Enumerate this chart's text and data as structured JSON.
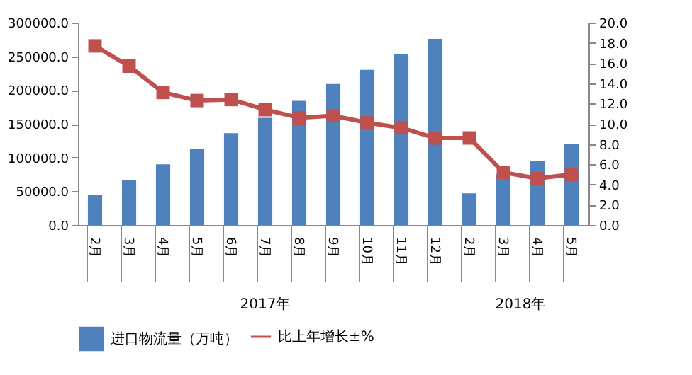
{
  "chart_data": {
    "type": "bar",
    "categories": [
      "2月",
      "3月",
      "4月",
      "5月",
      "6月",
      "7月",
      "8月",
      "9月",
      "10月",
      "11月",
      "12月",
      "2月",
      "3月",
      "4月",
      "5月"
    ],
    "series": [
      {
        "name": "进口物流量（万吨）",
        "color": "#4f81bd",
        "values": [
          44000,
          67000,
          90000,
          113000,
          136000,
          159000,
          184000,
          209000,
          230000,
          253000,
          276000,
          47000,
          75000,
          95000,
          120000
        ]
      },
      {
        "name": "比上年增长±%",
        "type": "line",
        "axis": "y2",
        "color": "#c0504d",
        "marker": "square",
        "values": [
          17.7,
          15.7,
          13.1,
          12.3,
          12.4,
          11.4,
          10.6,
          10.8,
          10.1,
          9.6,
          8.6,
          8.6,
          5.2,
          4.6,
          5.0
        ]
      }
    ],
    "ylim": [
      0,
      300000
    ],
    "yticks": [
      {
        "value": 0,
        "label": "0.0"
      },
      {
        "value": 50000,
        "label": "50000.0"
      },
      {
        "value": 100000,
        "label": "100000.0"
      },
      {
        "value": 150000,
        "label": "150000.0"
      },
      {
        "value": 200000,
        "label": "200000.0"
      },
      {
        "value": 250000,
        "label": "250000.0"
      },
      {
        "value": 300000,
        "label": "300000.0"
      }
    ],
    "y2lim": [
      0,
      20
    ],
    "y2ticks": [
      {
        "value": 0,
        "label": "0.0"
      },
      {
        "value": 2,
        "label": "2.0"
      },
      {
        "value": 4,
        "label": "4.0"
      },
      {
        "value": 6,
        "label": "6.0"
      },
      {
        "value": 8,
        "label": "8.0"
      },
      {
        "value": 10,
        "label": "10.0"
      },
      {
        "value": 12,
        "label": "12.0"
      },
      {
        "value": 14,
        "label": "14.0"
      },
      {
        "value": 16,
        "label": "16.0"
      },
      {
        "value": 18,
        "label": "18.0"
      },
      {
        "value": 20,
        "label": "20.0"
      }
    ],
    "annotations": [
      "2017年",
      "2018年"
    ],
    "grid": false,
    "legend": "bottom"
  }
}
